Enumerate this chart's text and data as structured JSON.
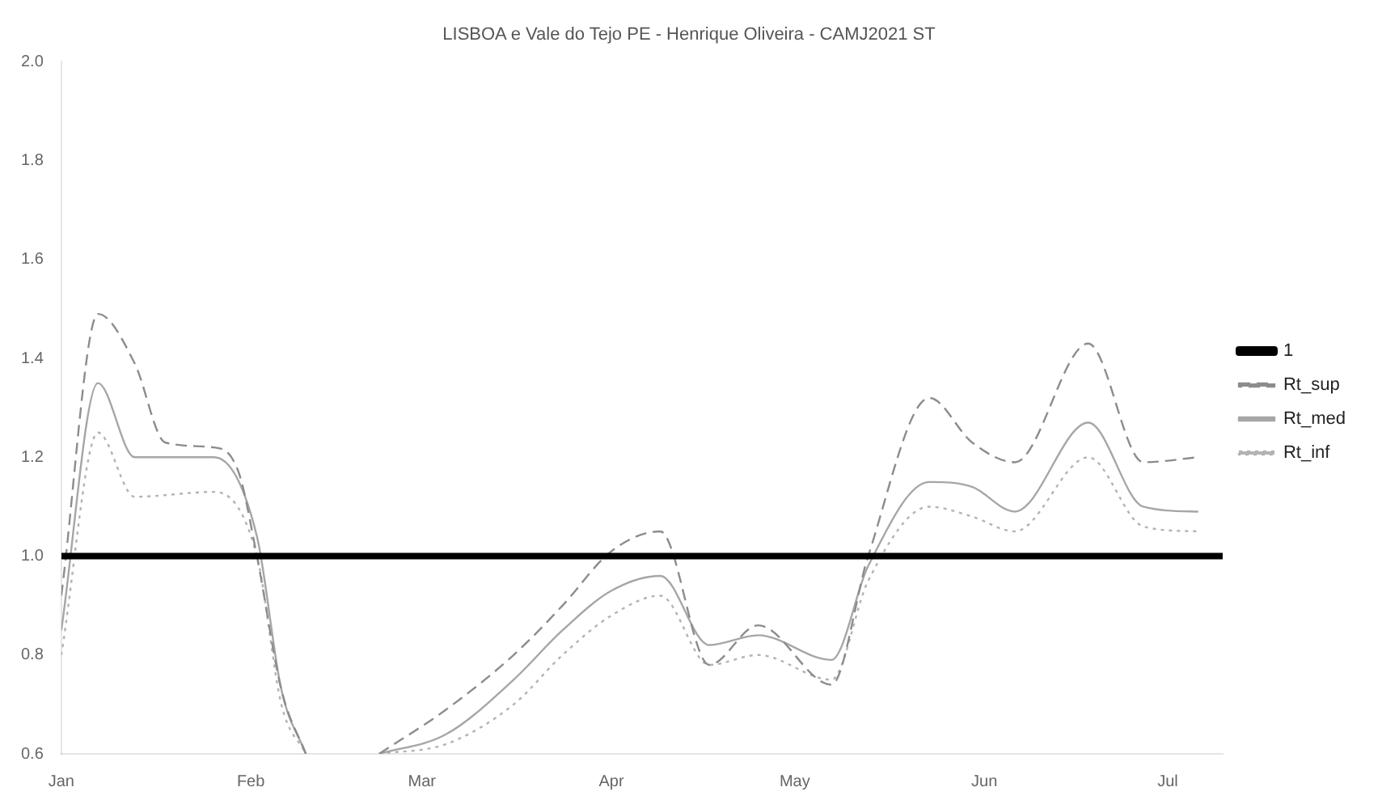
{
  "chart_data": {
    "type": "line",
    "title": "LISBOA e Vale do Tejo PE - Henrique Oliveira - CAMJ2021 ST",
    "xlim": [
      "--01-01",
      "--07-10"
    ],
    "xticks": [
      {
        "value": "--01-01",
        "label": "Jan"
      },
      {
        "value": "--02-01",
        "label": "Feb"
      },
      {
        "value": "--03-01",
        "label": "Mar"
      },
      {
        "value": "--04-01",
        "label": "Apr"
      },
      {
        "value": "--05-01",
        "label": "May"
      },
      {
        "value": "--06-01",
        "label": "Jun"
      },
      {
        "value": "--07-01",
        "label": "Jul"
      }
    ],
    "ylim": [
      0.6,
      2.0
    ],
    "yticks": [
      {
        "value": 0.6,
        "label": "0.6"
      },
      {
        "value": 0.8,
        "label": "0.8"
      },
      {
        "value": 1.0,
        "label": "1.0"
      },
      {
        "value": 1.2,
        "label": "1.2"
      },
      {
        "value": 1.4,
        "label": "1.4"
      },
      {
        "value": 1.6,
        "label": "1.6"
      },
      {
        "value": 1.8,
        "label": "1.8"
      },
      {
        "value": 2.0,
        "label": "2.0"
      }
    ],
    "grid": false,
    "legend": "right",
    "marker": "none",
    "series": [
      {
        "name": "1",
        "color": "#000000",
        "line_style": "solid",
        "x": [
          "--01-01",
          "--07-10"
        ],
        "values": [
          1.0,
          1.0
        ]
      },
      {
        "name": "Rt_sup",
        "color": "#8c8c8c",
        "line_style": "dashed",
        "x": [
          "--01-01",
          "--01-07",
          "--01-13",
          "--01-18",
          "--01-26",
          "--01-30",
          "--02-02",
          "--02-06",
          "--02-10",
          "--02-15",
          "--02-22",
          "--03-05",
          "--03-16",
          "--03-24",
          "--04-01",
          "--04-09",
          "--04-17",
          "--04-25",
          "--05-07",
          "--05-13",
          "--05-23",
          "--05-30",
          "--06-06",
          "--06-18",
          "--06-27",
          "--07-06"
        ],
        "values": [
          0.92,
          1.49,
          1.39,
          1.23,
          1.22,
          1.17,
          1.0,
          0.73,
          0.6,
          null,
          0.6,
          0.69,
          0.8,
          0.9,
          1.01,
          1.05,
          0.78,
          0.86,
          0.74,
          1.0,
          1.32,
          1.23,
          1.19,
          1.43,
          1.19,
          1.2
        ]
      },
      {
        "name": "Rt_med",
        "color": "#a6a6a6",
        "line_style": "solid",
        "x": [
          "--01-01",
          "--01-07",
          "--01-13",
          "--01-26",
          "--02-02",
          "--02-06",
          "--02-10",
          "--02-15",
          "--02-22",
          "--03-05",
          "--03-16",
          "--03-24",
          "--04-01",
          "--04-09",
          "--04-17",
          "--04-25",
          "--05-07",
          "--05-13",
          "--05-23",
          "--05-30",
          "--06-06",
          "--06-18",
          "--06-27",
          "--07-06"
        ],
        "values": [
          0.85,
          1.35,
          1.2,
          1.2,
          1.04,
          0.73,
          0.6,
          null,
          0.6,
          0.64,
          0.75,
          0.85,
          0.93,
          0.96,
          0.82,
          0.84,
          0.79,
          0.98,
          1.15,
          1.14,
          1.09,
          1.27,
          1.1,
          1.09
        ]
      },
      {
        "name": "Rt_inf",
        "color": "#b3b3b3",
        "line_style": "dotted",
        "x": [
          "--01-01",
          "--01-07",
          "--01-13",
          "--01-26",
          "--02-02",
          "--02-06",
          "--02-10",
          "--02-15",
          "--02-22",
          "--03-05",
          "--03-16",
          "--03-24",
          "--04-01",
          "--04-09",
          "--04-17",
          "--04-25",
          "--05-07",
          "--05-13",
          "--05-23",
          "--05-30",
          "--06-06",
          "--06-18",
          "--06-27",
          "--07-06"
        ],
        "values": [
          0.8,
          1.25,
          1.12,
          1.13,
          1.0,
          0.7,
          0.6,
          null,
          0.6,
          0.62,
          0.7,
          0.8,
          0.88,
          0.92,
          0.78,
          0.8,
          0.75,
          0.95,
          1.1,
          1.08,
          1.05,
          1.2,
          1.06,
          1.05
        ]
      }
    ]
  }
}
